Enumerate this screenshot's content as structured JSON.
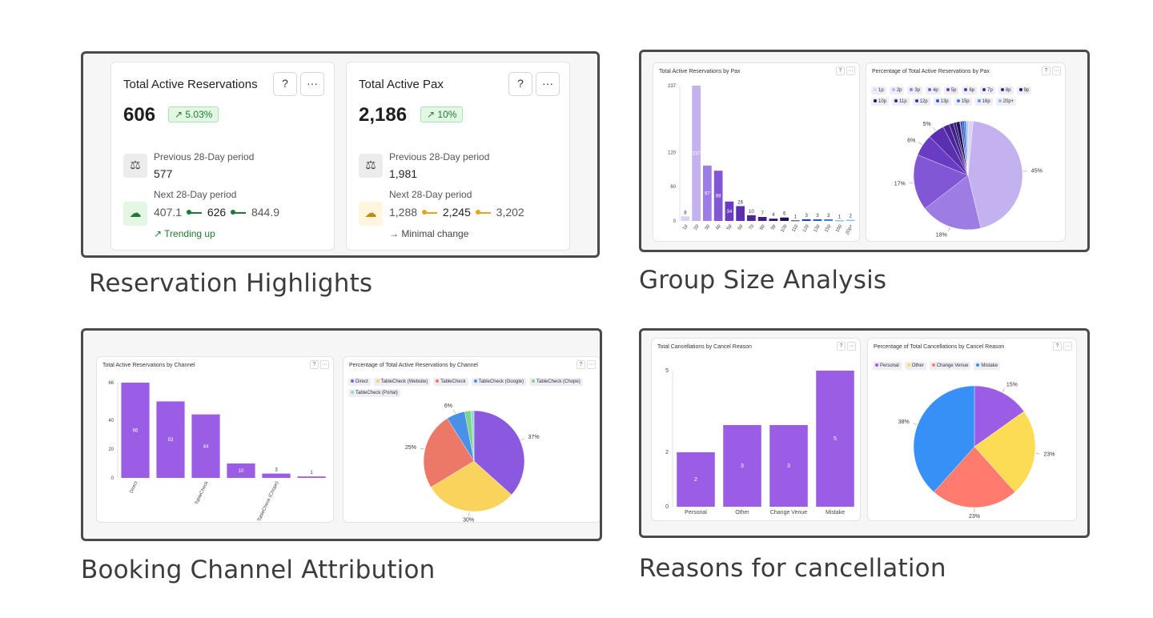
{
  "captions": {
    "highlights": "Reservation Highlights",
    "group_size": "Group Size Analysis",
    "channel": "Booking Channel Attribution",
    "cancellation": "Reasons for cancellation"
  },
  "colors": {
    "accent": "#9b5de5",
    "green": "#1f7a32",
    "orange": "#e6a619"
  },
  "kpis": [
    {
      "title": "Total Active Reservations",
      "value": "606",
      "badge": "↗ 5.03%",
      "help_icon": "question-circle-icon",
      "more_icon": "ellipsis-icon",
      "prev_label": "Previous 28-Day period",
      "prev_value": "577",
      "next_label": "Next 28-Day period",
      "next_low": "407.1",
      "next_mid": "626",
      "next_high": "844.9",
      "trend_label": "↗ Trending up"
    },
    {
      "title": "Total Active Pax",
      "value": "2,186",
      "badge": "↗ 10%",
      "help_icon": "question-circle-icon",
      "more_icon": "ellipsis-icon",
      "prev_label": "Previous 28-Day period",
      "prev_value": "1,981",
      "next_label": "Next 28-Day period",
      "next_low": "1,288",
      "next_mid": "2,245",
      "next_high": "3,202",
      "trend_label": "→ Minimal change"
    }
  ],
  "chart_data": [
    {
      "id": "pax_bar",
      "type": "bar",
      "title": "Total Active Reservations by Pax",
      "categories": [
        "1p",
        "2p",
        "3p",
        "4p",
        "5p",
        "6p",
        "7p",
        "8p",
        "9p",
        "10p",
        "11p",
        "12p",
        "13p",
        "15p",
        "16p",
        "20p+"
      ],
      "values": [
        8,
        237,
        97,
        88,
        34,
        26,
        10,
        7,
        4,
        6,
        1,
        3,
        3,
        3,
        1,
        2
      ],
      "yticks": [
        0,
        60,
        120,
        237
      ],
      "ylim": [
        0,
        237
      ]
    },
    {
      "id": "pax_pie",
      "type": "pie",
      "title": "Percentage of Total Active Reservations by Pax",
      "labels": [
        "1p",
        "2p",
        "3p",
        "4p",
        "5p",
        "6p",
        "7p",
        "8p",
        "9p",
        "10p",
        "11p",
        "12p",
        "13p",
        "15p",
        "16p",
        "20p+"
      ],
      "values": [
        8,
        237,
        97,
        88,
        34,
        26,
        10,
        7,
        4,
        6,
        1,
        3,
        3,
        3,
        1,
        2
      ],
      "visible_percent_labels": [
        "45%",
        "18%",
        "17%",
        "6%",
        "5%"
      ]
    },
    {
      "id": "channel_bar",
      "type": "bar",
      "title": "Total Active Reservations by Channel",
      "categories": [
        "Direct",
        "TableCheck (Website)",
        "TableCheck",
        "TableCheck (Google)",
        "TableCheck (Chope)",
        "TableCheck (Portal)"
      ],
      "tick_labels": [
        "Direct",
        "",
        "TableCheck",
        "",
        "TableCheck (Chope)",
        ""
      ],
      "values": [
        66,
        53,
        44,
        10,
        3,
        1
      ],
      "yticks": [
        0,
        20,
        40,
        66
      ],
      "ylim": [
        0,
        66
      ]
    },
    {
      "id": "channel_pie",
      "type": "pie",
      "title": "Percentage of Total Active Reservations by Channel",
      "labels": [
        "Direct",
        "TableCheck (Website)",
        "TableCheck",
        "TableCheck (Google)",
        "TableCheck (Chope)",
        "TableCheck (Portal)"
      ],
      "values": [
        37,
        30,
        25,
        6,
        2,
        1
      ],
      "visible_percent_labels": [
        "37%",
        "30%",
        "25%",
        "6%"
      ]
    },
    {
      "id": "cancel_bar",
      "type": "bar",
      "title": "Total Cancellations by Cancel Reason",
      "categories": [
        "Personal",
        "Other",
        "Change Venue",
        "Mistake"
      ],
      "values": [
        2,
        3,
        3,
        5
      ],
      "yticks": [
        0,
        2,
        5
      ],
      "ylim": [
        0,
        5
      ]
    },
    {
      "id": "cancel_pie",
      "type": "pie",
      "title": "Percentage of Total Cancellations by Cancel Reason",
      "labels": [
        "Personal",
        "Other",
        "Change Venue",
        "Mistake"
      ],
      "values": [
        15,
        23,
        23,
        38
      ],
      "visible_percent_labels": [
        "15%",
        "23%",
        "23%",
        "38%"
      ]
    }
  ],
  "palettes": {
    "pax": [
      "#dcd2f5",
      "#c4b1f0",
      "#9d7ce3",
      "#8257d6",
      "#6a3cc4",
      "#5a2fb0",
      "#4c2599",
      "#401f86",
      "#2f1670",
      "#23115c",
      "#1e2d88",
      "#2040b0",
      "#2c5ad0",
      "#3f7be0",
      "#5c9aec",
      "#8dbcf5"
    ],
    "channel": [
      "#8a59e0",
      "#fad35c",
      "#ec7868",
      "#4a90e8",
      "#7ed38c",
      "#8fd9c8"
    ],
    "cancel": [
      "#9b5de5",
      "#fcdc54",
      "#ff7b6e",
      "#3790f5"
    ]
  },
  "mini_buttons": {
    "help": "?",
    "more": "···"
  }
}
